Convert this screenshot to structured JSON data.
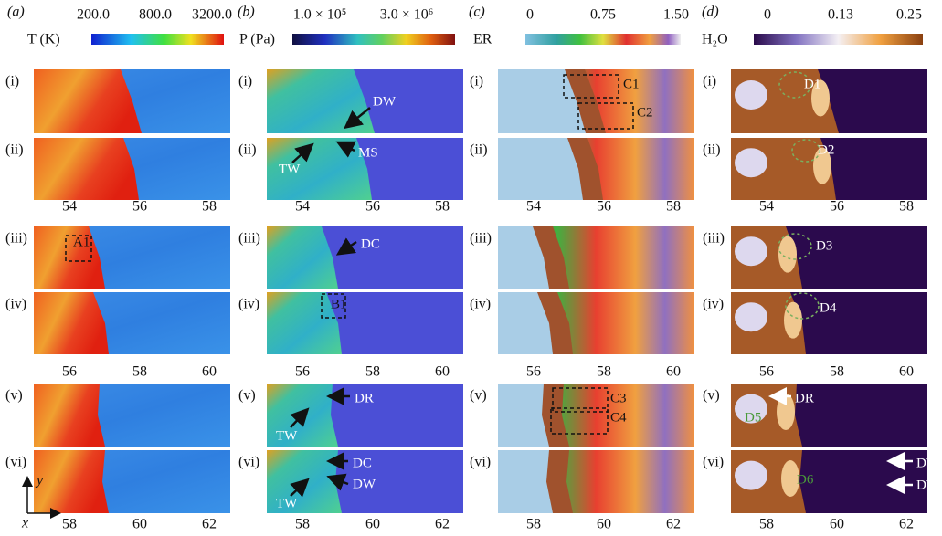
{
  "panel_labels": [
    "(i)",
    "(ii)",
    "(iii)",
    "(iv)",
    "(v)",
    "(vi)"
  ],
  "axes": {
    "x": "x",
    "y": "y"
  },
  "columns": [
    {
      "label": "(a)",
      "colorbar": {
        "title": "T (K)",
        "ticks": [
          "200.0",
          "800.0",
          "3200.0"
        ]
      },
      "xticks": [
        [
          54,
          56,
          58
        ],
        [
          56,
          58,
          60
        ],
        [
          58,
          60,
          62
        ]
      ],
      "annotations": [
        "A1"
      ]
    },
    {
      "label": "(b)",
      "colorbar": {
        "title": "P (Pa)",
        "ticks": [
          "1.0 × 10⁵",
          "3.0 × 10⁶"
        ]
      },
      "xticks": [
        [
          54,
          56,
          58
        ],
        [
          56,
          58,
          60
        ],
        [
          58,
          60,
          62
        ]
      ],
      "annotations": [
        "DW",
        "MS",
        "TW",
        "DC",
        "B1",
        "DR",
        "TW",
        "DC",
        "DW",
        "TW"
      ]
    },
    {
      "label": "(c)",
      "colorbar": {
        "title": "ER",
        "ticks": [
          "0",
          "0.75",
          "1.50"
        ]
      },
      "xticks": [
        [
          54,
          56,
          58
        ],
        [
          56,
          58,
          60
        ],
        [
          58,
          60,
          62
        ]
      ],
      "annotations": [
        "C1",
        "C2",
        "C3",
        "C4"
      ]
    },
    {
      "label": "(d)",
      "colorbar": {
        "title": "H₂O",
        "ticks": [
          "0",
          "0.13",
          "0.25"
        ]
      },
      "xticks": [
        [
          54,
          56,
          58
        ],
        [
          56,
          58,
          60
        ],
        [
          58,
          60,
          62
        ]
      ],
      "annotations": [
        "D1",
        "D2",
        "D3",
        "D4",
        "DR",
        "D5",
        "DW",
        "D6",
        "DW"
      ]
    }
  ]
}
